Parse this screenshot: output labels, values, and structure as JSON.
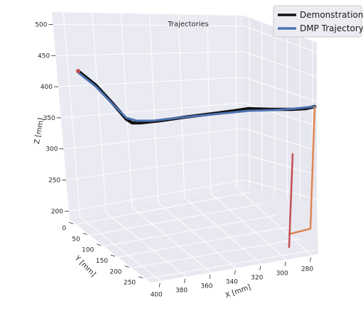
{
  "chart_data": {
    "type": "line",
    "projection": "3d",
    "title": "Trajectories",
    "xlabel": "X [mm]",
    "ylabel": "Y [mm]",
    "zlabel": "Z [mm]",
    "x_ticks": [
      "400",
      "380",
      "360",
      "340",
      "320",
      "300",
      "280"
    ],
    "y_ticks": [
      "0",
      "50",
      "100",
      "150",
      "200",
      "250"
    ],
    "z_ticks": [
      "200",
      "250",
      "300",
      "350",
      "400",
      "450",
      "500"
    ],
    "grid": true,
    "legend": {
      "placement": "top-right"
    },
    "series": [
      {
        "name": "Demonstration",
        "color": "#111111",
        "description_points_xyz": "approximate path from upper-left start down to a dip, then a long rising segment to the right"
      },
      {
        "name": "DMP Trajectory",
        "color": "#4c72b0"
      }
    ],
    "extra_paths": [
      {
        "color": "#dd8452"
      },
      {
        "color": "#c44e52"
      }
    ]
  }
}
